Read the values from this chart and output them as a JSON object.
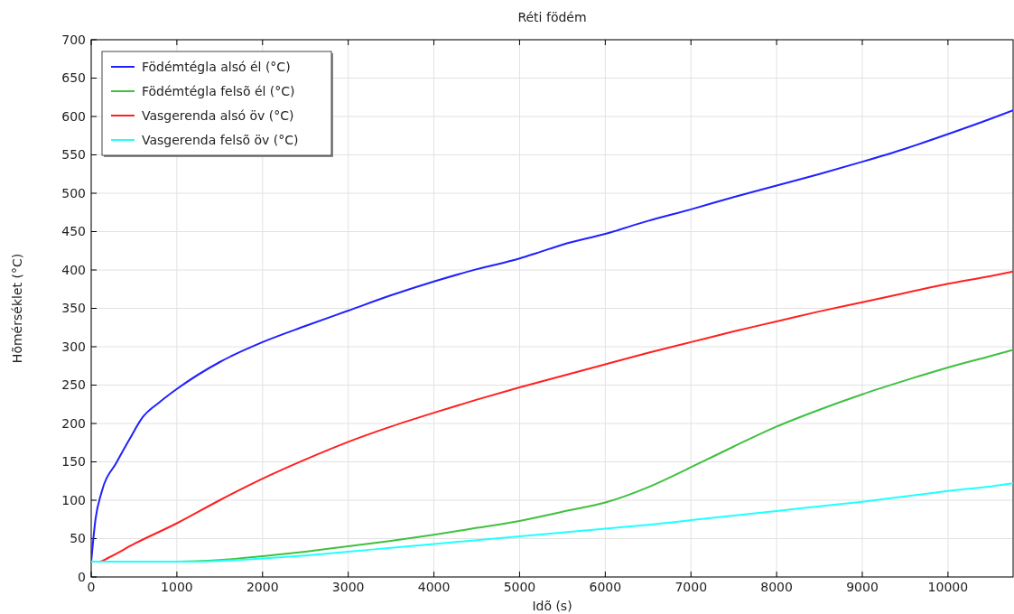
{
  "chart_data": {
    "type": "line",
    "title": "Réti födém",
    "xlabel": "Idõ (s)",
    "ylabel": "Hõmérséklet (°C)",
    "xlim": [
      0,
      10760
    ],
    "xticks": [
      0,
      1000,
      2000,
      3000,
      4000,
      5000,
      6000,
      7000,
      8000,
      9000,
      10000
    ],
    "ylim": [
      0,
      700
    ],
    "yticks": [
      0,
      50,
      100,
      150,
      200,
      250,
      300,
      350,
      400,
      450,
      500,
      550,
      600,
      650,
      700
    ],
    "grid": true,
    "legend": "top left",
    "line_style": "solid",
    "marker": "none",
    "series": [
      {
        "name": "Födémtégla alsó él (°C)",
        "color": "#2020ff",
        "x": [
          0,
          50,
          120,
          300,
          450,
          600,
          800,
          1000,
          1500,
          2000,
          2500,
          3000,
          3500,
          4000,
          4500,
          5000,
          5200,
          5500,
          6000,
          6500,
          7000,
          7500,
          8000,
          8500,
          9000,
          9500,
          10000,
          10500,
          10760
        ],
        "values": [
          20,
          75,
          110,
          150,
          180,
          208,
          228,
          245,
          280,
          306,
          327,
          347,
          367,
          385,
          401,
          415,
          422,
          433,
          447,
          464,
          479,
          495,
          510,
          525,
          541,
          558,
          577,
          597,
          608
        ]
      },
      {
        "name": "Födémtégla felsõ él (°C)",
        "color": "#40c040",
        "x": [
          0,
          500,
          1000,
          1500,
          2000,
          2500,
          3000,
          3500,
          4000,
          4500,
          5000,
          5500,
          6000,
          6500,
          7000,
          7500,
          8000,
          8500,
          9000,
          9500,
          10000,
          10500,
          10760
        ],
        "values": [
          20,
          20,
          20,
          22,
          27,
          33,
          40,
          47,
          55,
          64,
          73,
          85,
          97,
          117,
          143,
          170,
          196,
          218,
          238,
          256,
          273,
          288,
          296
        ]
      },
      {
        "name": "Vasgerenda alsó öv (°C)",
        "color": "#ff2020",
        "x": [
          0,
          100,
          200,
          500,
          1000,
          1500,
          2000,
          2500,
          3000,
          3500,
          4000,
          4500,
          5000,
          5500,
          6000,
          6500,
          7000,
          7500,
          8000,
          8500,
          9000,
          9500,
          10000,
          10500,
          10760
        ],
        "values": [
          20,
          20,
          25,
          43,
          70,
          100,
          128,
          153,
          176,
          196,
          214,
          231,
          247,
          262,
          277,
          292,
          306,
          320,
          333,
          346,
          358,
          370,
          382,
          392,
          398
        ]
      },
      {
        "name": "Vasgerenda felsõ öv (°C)",
        "color": "#20ffff",
        "x": [
          0,
          1000,
          1500,
          2000,
          2500,
          3000,
          3500,
          4000,
          4500,
          5000,
          5500,
          6000,
          6500,
          7000,
          7500,
          8000,
          8500,
          9000,
          9500,
          10000,
          10500,
          10760
        ],
        "values": [
          20,
          20,
          21,
          24,
          28,
          33,
          38,
          43,
          48,
          53,
          58,
          63,
          68,
          74,
          80,
          86,
          92,
          98,
          105,
          112,
          118,
          122
        ]
      }
    ]
  }
}
